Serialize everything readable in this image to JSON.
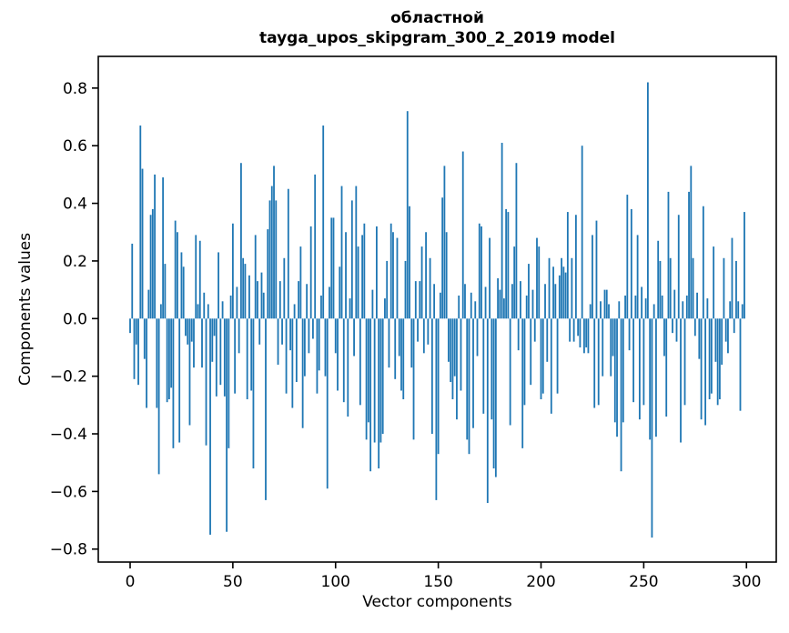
{
  "figure": {
    "title_line1": "областной",
    "title_line2": "tayga_upos_skipgram_300_2_2019 model",
    "xlabel": "Vector components",
    "ylabel": "Components values"
  },
  "chart_data": {
    "type": "bar",
    "title": "областной\ntayga_upos_skipgram_300_2_2019 model",
    "xlabel": "Vector components",
    "ylabel": "Components values",
    "grid": false,
    "legend": null,
    "n_components": 300,
    "xlim": [
      -15.5,
      314.5
    ],
    "ylim": [
      -0.845,
      0.91
    ],
    "x_ticks": [
      0,
      50,
      100,
      150,
      200,
      250,
      300
    ],
    "x_tick_labels": [
      "0",
      "50",
      "100",
      "150",
      "200",
      "250",
      "300"
    ],
    "y_ticks": [
      -0.8,
      -0.6,
      -0.4,
      -0.2,
      0.0,
      0.2,
      0.4,
      0.6,
      0.8
    ],
    "y_tick_labels": [
      "−0.8",
      "−0.6",
      "−0.4",
      "−0.2",
      "0.0",
      "0.2",
      "0.4",
      "0.6",
      "0.8"
    ],
    "colors": {
      "bar": "#1f77b4",
      "axis": "#000000",
      "background": "#ffffff"
    },
    "bar_rel_width": 0.8,
    "values": [
      -0.05,
      0.26,
      -0.21,
      -0.09,
      -0.23,
      0.67,
      0.52,
      -0.14,
      -0.31,
      0.1,
      0.36,
      0.38,
      0.5,
      -0.31,
      -0.54,
      0.05,
      0.49,
      0.19,
      -0.29,
      -0.28,
      -0.24,
      -0.45,
      0.34,
      0.3,
      -0.43,
      0.23,
      0.18,
      -0.06,
      -0.09,
      -0.37,
      -0.08,
      -0.17,
      0.29,
      0.05,
      0.27,
      -0.17,
      0.09,
      -0.44,
      0.05,
      -0.75,
      -0.15,
      -0.06,
      -0.27,
      0.23,
      -0.23,
      0.06,
      -0.27,
      -0.74,
      -0.45,
      0.08,
      0.33,
      -0.26,
      0.11,
      -0.12,
      0.54,
      0.21,
      0.19,
      -0.28,
      0.15,
      -0.25,
      -0.52,
      0.29,
      0.13,
      -0.09,
      0.16,
      0.09,
      -0.63,
      0.31,
      0.41,
      0.46,
      0.53,
      0.41,
      -0.16,
      0.13,
      -0.09,
      0.21,
      -0.26,
      0.45,
      -0.11,
      -0.31,
      0.05,
      -0.22,
      0.13,
      0.25,
      -0.38,
      -0.2,
      0.12,
      -0.12,
      0.32,
      -0.07,
      0.5,
      -0.26,
      -0.18,
      0.08,
      0.67,
      -0.2,
      -0.59,
      0.11,
      0.35,
      0.35,
      -0.12,
      -0.25,
      0.18,
      0.46,
      -0.29,
      0.3,
      -0.34,
      0.07,
      0.41,
      -0.13,
      0.46,
      0.25,
      -0.3,
      0.29,
      0.33,
      -0.42,
      -0.36,
      -0.53,
      0.1,
      -0.43,
      0.32,
      -0.52,
      -0.43,
      -0.4,
      0.07,
      0.2,
      -0.17,
      0.33,
      0.3,
      -0.21,
      0.28,
      -0.13,
      -0.25,
      -0.28,
      0.2,
      0.72,
      0.39,
      -0.17,
      -0.42,
      0.13,
      -0.08,
      0.13,
      0.25,
      -0.12,
      0.3,
      -0.09,
      0.21,
      -0.4,
      0.12,
      -0.63,
      -0.47,
      0.09,
      0.42,
      0.53,
      0.3,
      -0.15,
      -0.22,
      -0.28,
      -0.2,
      -0.35,
      0.08,
      -0.25,
      0.58,
      0.12,
      -0.42,
      -0.47,
      0.09,
      -0.38,
      0.06,
      -0.13,
      0.33,
      0.32,
      -0.33,
      0.11,
      -0.64,
      0.28,
      -0.35,
      -0.52,
      -0.55,
      0.14,
      0.1,
      0.61,
      0.07,
      0.38,
      0.37,
      -0.37,
      0.12,
      0.25,
      0.54,
      -0.11,
      0.13,
      -0.45,
      -0.3,
      0.08,
      0.19,
      -0.23,
      0.1,
      -0.08,
      0.28,
      0.25,
      -0.28,
      -0.26,
      0.12,
      -0.15,
      0.21,
      -0.33,
      0.18,
      0.12,
      -0.26,
      0.15,
      0.21,
      0.18,
      0.16,
      0.37,
      -0.08,
      0.21,
      -0.08,
      0.36,
      -0.06,
      -0.1,
      0.6,
      -0.12,
      -0.1,
      -0.12,
      0.05,
      0.29,
      -0.31,
      0.34,
      -0.3,
      0.06,
      -0.2,
      0.1,
      0.1,
      0.05,
      -0.2,
      -0.13,
      -0.36,
      -0.41,
      0.06,
      -0.53,
      -0.36,
      0.08,
      0.43,
      -0.11,
      0.38,
      -0.29,
      0.08,
      0.29,
      -0.35,
      0.11,
      -0.3,
      0.07,
      0.82,
      -0.42,
      -0.76,
      0.05,
      -0.41,
      0.27,
      0.2,
      0.08,
      -0.13,
      -0.34,
      0.44,
      0.21,
      -0.05,
      0.1,
      -0.08,
      0.36,
      -0.43,
      0.06,
      -0.3,
      0.08,
      0.44,
      0.53,
      0.21,
      -0.06,
      0.09,
      -0.14,
      -0.35,
      0.39,
      -0.37,
      0.07,
      -0.28,
      -0.26,
      0.25,
      -0.15,
      -0.3,
      -0.28,
      -0.16,
      0.21,
      -0.08,
      -0.12,
      0.06,
      0.28,
      -0.05,
      0.2,
      0.06,
      -0.32,
      0.05,
      0.37
    ]
  }
}
